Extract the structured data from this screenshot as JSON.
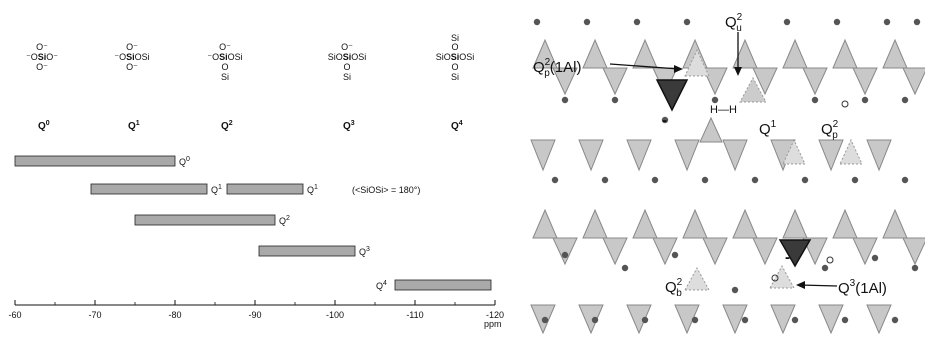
{
  "spectrum": {
    "structures": [
      {
        "top": "",
        "rows": [
          {
            "pre": "O⁻",
            "bold": "",
            "post": ""
          },
          {
            "pre": "⁻O",
            "bold": "Si",
            "post": "O⁻"
          },
          {
            "pre": "O⁻",
            "bold": "",
            "post": ""
          }
        ],
        "q_base": "Q",
        "q_sup": "0"
      },
      {
        "top": "",
        "rows": [
          {
            "pre": "O⁻",
            "bold": "",
            "post": ""
          },
          {
            "pre": "⁻O",
            "bold": "Si",
            "post": "OSi"
          },
          {
            "pre": "O⁻",
            "bold": "",
            "post": ""
          }
        ],
        "q_base": "Q",
        "q_sup": "1"
      },
      {
        "top": "",
        "rows": [
          {
            "pre": "O⁻",
            "bold": "",
            "post": ""
          },
          {
            "pre": "⁻O",
            "bold": "Si",
            "post": "OSi"
          },
          {
            "pre": "O",
            "bold": "",
            "post": ""
          },
          {
            "pre": "Si",
            "bold": "",
            "post": ""
          }
        ],
        "q_base": "Q",
        "q_sup": "2"
      },
      {
        "top": "",
        "rows": [
          {
            "pre": "O⁻",
            "bold": "",
            "post": ""
          },
          {
            "pre": "SiO",
            "bold": "Si",
            "post": "OSi"
          },
          {
            "pre": "O",
            "bold": "",
            "post": ""
          },
          {
            "pre": "Si",
            "bold": "",
            "post": ""
          }
        ],
        "q_base": "Q",
        "q_sup": "3"
      },
      {
        "top": "Si",
        "rows": [
          {
            "pre": "O",
            "bold": "",
            "post": ""
          },
          {
            "pre": "SiO",
            "bold": "Si",
            "post": "OSi"
          },
          {
            "pre": "O",
            "bold": "",
            "post": ""
          },
          {
            "pre": "Si",
            "bold": "",
            "post": ""
          }
        ],
        "q_base": "Q",
        "q_sup": "4"
      }
    ],
    "ranges": [
      {
        "from": -60,
        "to": -80,
        "row": 0,
        "label_base": "Q",
        "label_sup": "0"
      },
      {
        "from": -69.5,
        "to": -84,
        "row": 1,
        "label_base": "Q",
        "label_sup": "1"
      },
      {
        "from": -86.5,
        "to": -96,
        "row": 1,
        "label_base": "Q",
        "label_sup": "1"
      },
      {
        "from": -75,
        "to": -92.5,
        "row": 2,
        "label_base": "Q",
        "label_sup": "2"
      },
      {
        "from": -90.5,
        "to": -102.5,
        "row": 3,
        "label_base": "Q",
        "label_sup": "3"
      },
      {
        "from": -107.5,
        "to": -119.5,
        "row": 4,
        "label_base": "Q",
        "label_sup": "4"
      }
    ],
    "annotation": "(<SiOSi> = 180°)",
    "axis": {
      "min": -60,
      "max": -120,
      "ticks": [
        -60,
        -70,
        -80,
        -90,
        -100,
        -110,
        -120
      ],
      "unit": "ppm"
    }
  },
  "structure_labels": {
    "q2p_1al": {
      "base": "Q",
      "sup": "2",
      "sub": "p",
      "suffix": "(1Al)"
    },
    "q2u": {
      "base": "Q",
      "sup": "2",
      "sub": "u"
    },
    "hh": "H—H",
    "q1": {
      "base": "Q",
      "sup": "1"
    },
    "q2p": {
      "base": "Q",
      "sup": "2",
      "sub": "p"
    },
    "q2b": {
      "base": "Q",
      "sup": "2",
      "sub": "b"
    },
    "q3_1al": {
      "base": "Q",
      "sup": "3",
      "suffix": "(1Al)"
    },
    "minus": "-"
  },
  "colors": {
    "bar_fill": "#a9a9a9",
    "tetra_fill": "#c8c8c8",
    "al_fill": "#3a3a3a",
    "dot": "#555555"
  }
}
